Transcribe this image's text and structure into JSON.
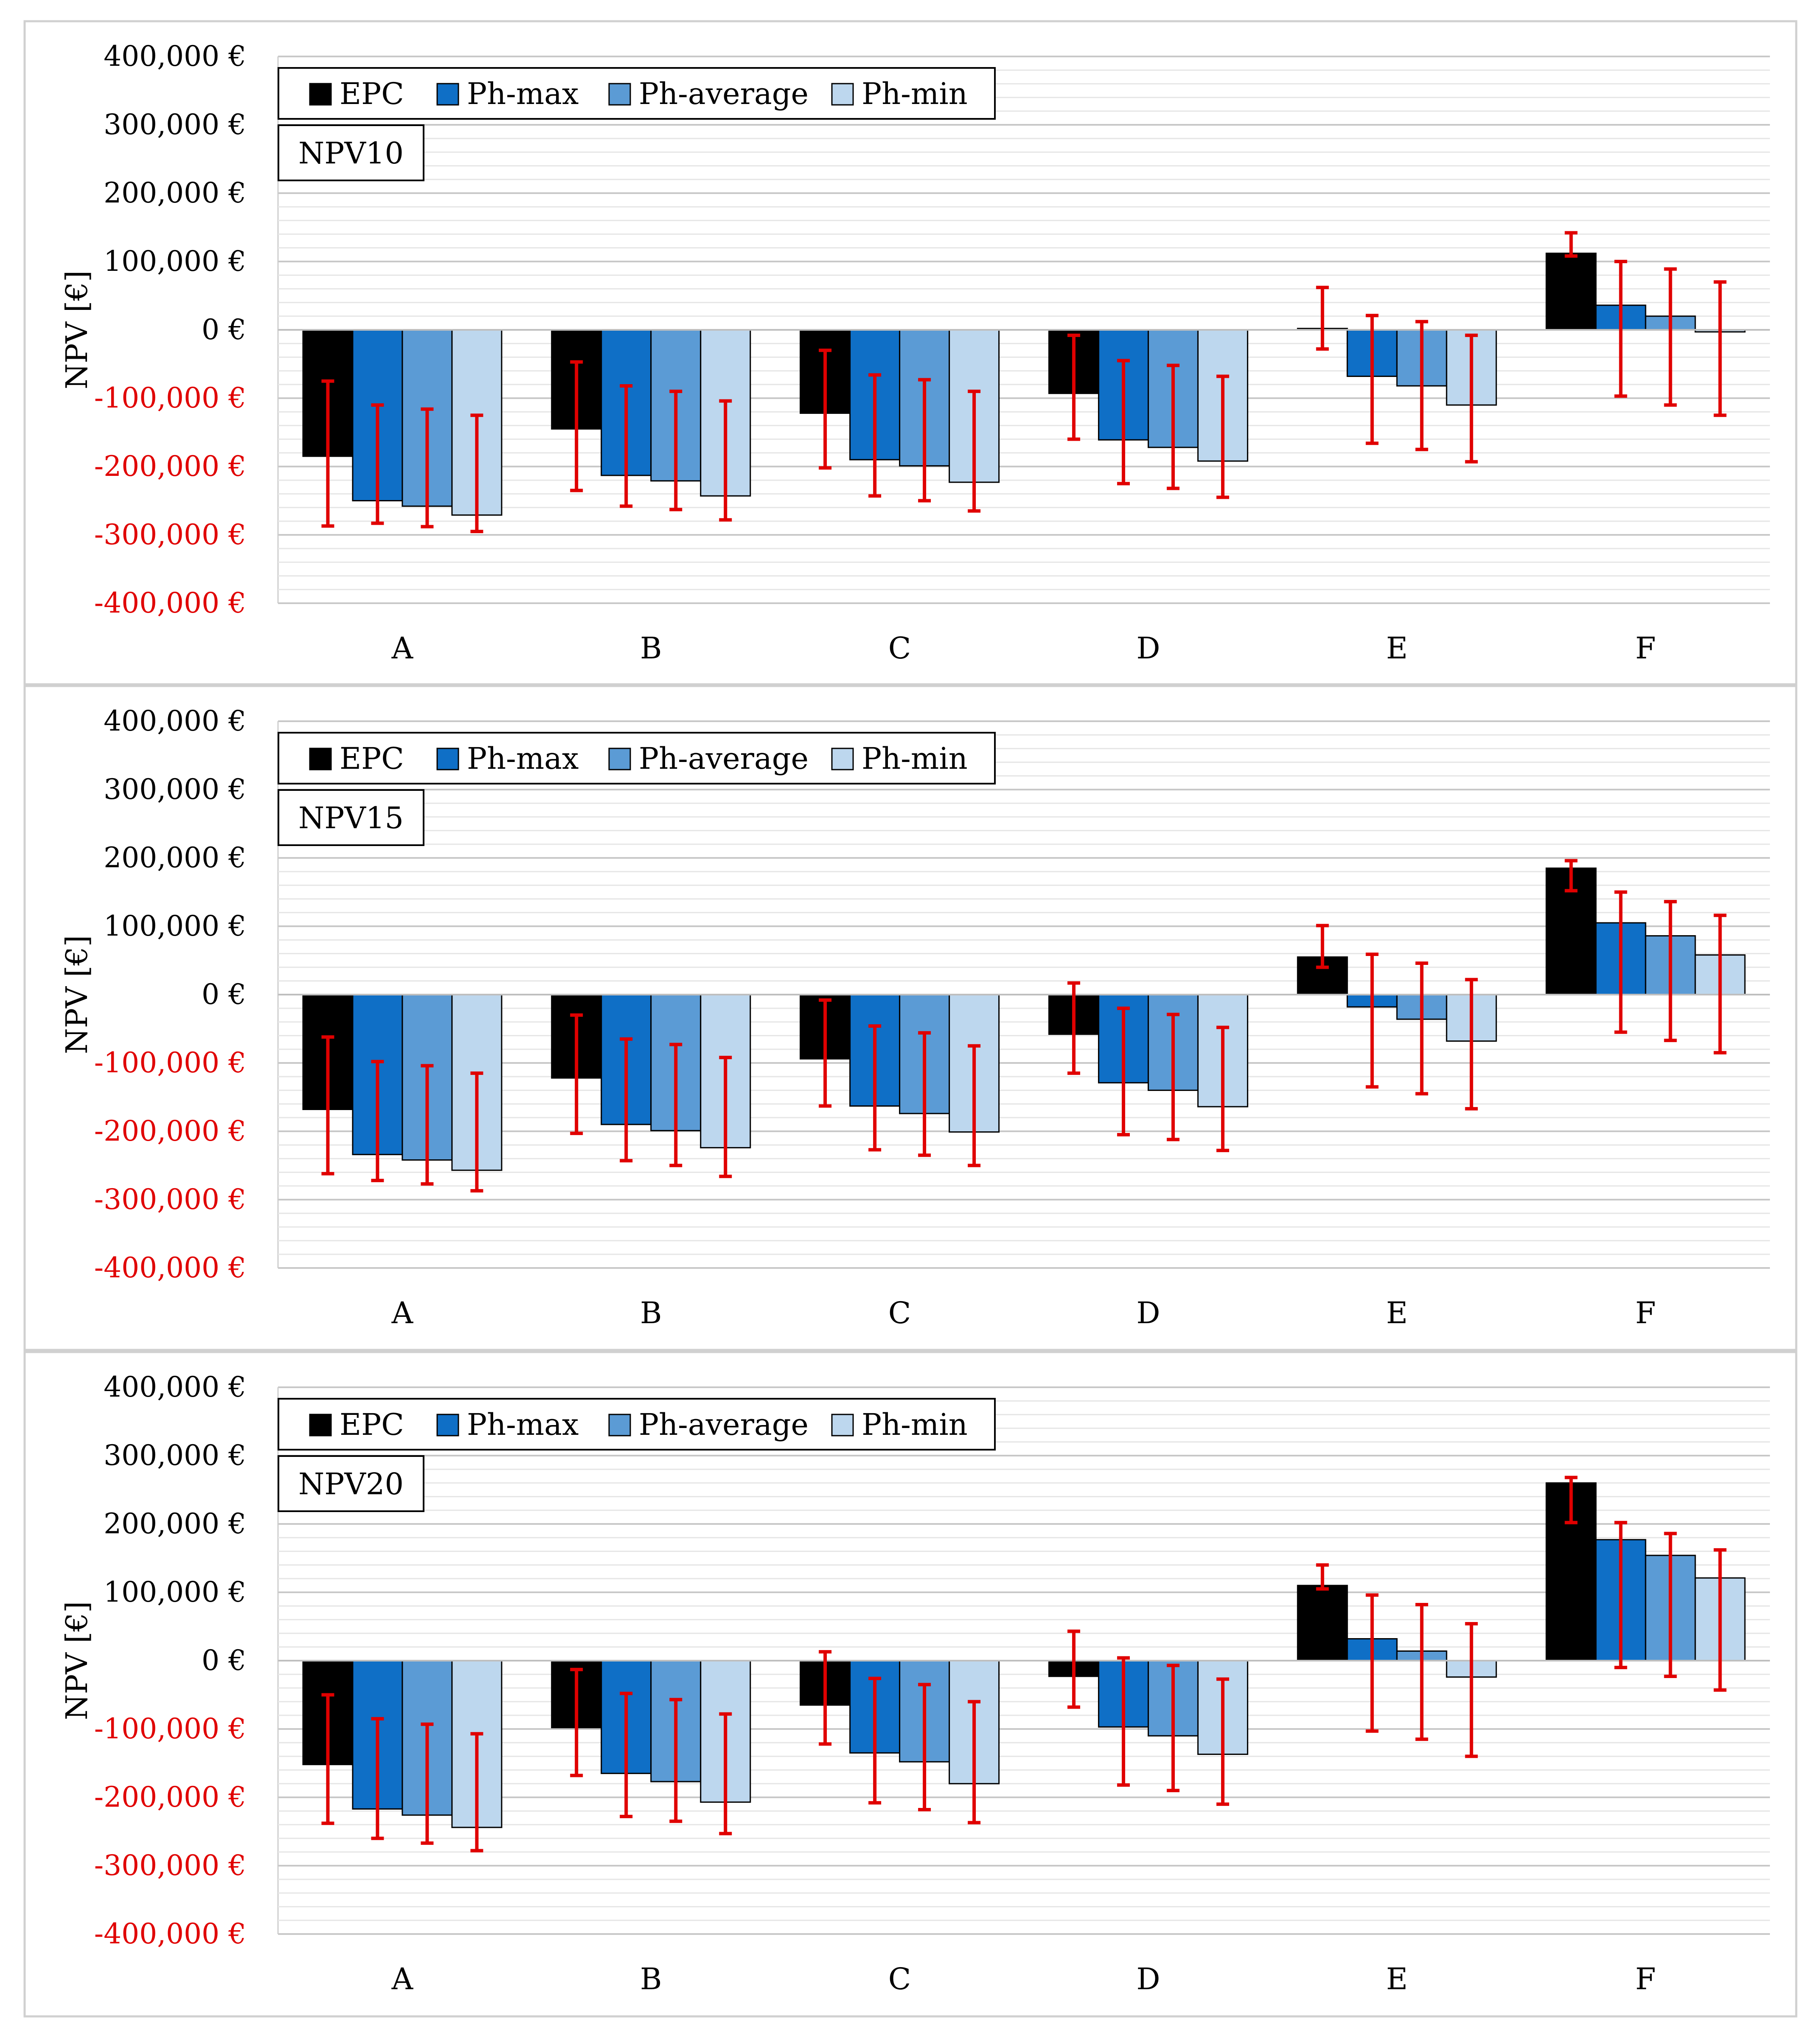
{
  "colors": {
    "EPC": "#000000",
    "Ph-max": "#0f6fc6",
    "Ph-average": "#5b9bd5",
    "Ph-min": "#bdd7ee",
    "error_bar": "#e00000",
    "negative_tick": "#e00000",
    "positive_tick": "#000000",
    "grid": "#d9d9d9",
    "frame": "#d0d0d0"
  },
  "chart_data": [
    {
      "type": "bar",
      "title": "NPV10",
      "ylabel": "NPV [€]",
      "xlabel": "",
      "ylim": [
        -400000,
        400000
      ],
      "yticks": [
        400000,
        300000,
        200000,
        100000,
        0,
        -100000,
        -200000,
        -300000,
        -400000
      ],
      "ytick_labels": [
        "400,000 €",
        "300,000 €",
        "200,000 €",
        "100,000 €",
        "0 €",
        "-100,000 €",
        "-200,000 €",
        "-300,000 €",
        "-400,000 €"
      ],
      "categories": [
        "A",
        "B",
        "C",
        "D",
        "E",
        "F"
      ],
      "legend": [
        "EPC",
        "Ph-max",
        "Ph-average",
        "Ph-min"
      ],
      "legend_position": "top-left",
      "series": [
        {
          "name": "EPC",
          "values": [
            -185000,
            -145000,
            -122000,
            -93000,
            2000,
            112000
          ],
          "err_low": [
            -287000,
            -235000,
            -202000,
            -160000,
            -28000,
            108000
          ],
          "err_high": [
            -75000,
            -47000,
            -30000,
            -8000,
            62000,
            142000
          ]
        },
        {
          "name": "Ph-max",
          "values": [
            -250000,
            -213000,
            -190000,
            -161000,
            -68000,
            36000
          ],
          "err_low": [
            -283000,
            -258000,
            -243000,
            -225000,
            -166000,
            -97000
          ],
          "err_high": [
            -110000,
            -82000,
            -66000,
            -45000,
            21000,
            100000
          ]
        },
        {
          "name": "Ph-average",
          "values": [
            -258000,
            -221000,
            -199000,
            -172000,
            -82000,
            20000
          ],
          "err_low": [
            -288000,
            -263000,
            -250000,
            -232000,
            -175000,
            -110000
          ],
          "err_high": [
            -116000,
            -90000,
            -73000,
            -52000,
            12000,
            89000
          ]
        },
        {
          "name": "Ph-min",
          "values": [
            -271000,
            -243000,
            -223000,
            -192000,
            -110000,
            -3000
          ],
          "err_low": [
            -295000,
            -278000,
            -265000,
            -245000,
            -193000,
            -125000
          ],
          "err_high": [
            -125000,
            -104000,
            -90000,
            -68000,
            -8000,
            70000
          ]
        }
      ]
    },
    {
      "type": "bar",
      "title": "NPV15",
      "ylabel": "NPV [€]",
      "xlabel": "",
      "ylim": [
        -400000,
        400000
      ],
      "yticks": [
        400000,
        300000,
        200000,
        100000,
        0,
        -100000,
        -200000,
        -300000,
        -400000
      ],
      "ytick_labels": [
        "400,000 €",
        "300,000 €",
        "200,000 €",
        "100,000 €",
        "0 €",
        "-100,000 €",
        "-200,000 €",
        "-300,000 €",
        "-400,000 €"
      ],
      "categories": [
        "A",
        "B",
        "C",
        "D",
        "E",
        "F"
      ],
      "legend": [
        "EPC",
        "Ph-max",
        "Ph-average",
        "Ph-min"
      ],
      "legend_position": "top-left",
      "series": [
        {
          "name": "EPC",
          "values": [
            -168000,
            -122000,
            -94000,
            -58000,
            55000,
            185000
          ],
          "err_low": [
            -262000,
            -203000,
            -163000,
            -115000,
            40000,
            152000
          ],
          "err_high": [
            -62000,
            -30000,
            -8000,
            17000,
            101000,
            196000
          ]
        },
        {
          "name": "Ph-max",
          "values": [
            -234000,
            -190000,
            -163000,
            -129000,
            -18000,
            105000
          ],
          "err_low": [
            -272000,
            -243000,
            -227000,
            -205000,
            -135000,
            -55000
          ],
          "err_high": [
            -98000,
            -65000,
            -46000,
            -20000,
            59000,
            150000
          ]
        },
        {
          "name": "Ph-average",
          "values": [
            -242000,
            -199000,
            -174000,
            -140000,
            -36000,
            86000
          ],
          "err_low": [
            -277000,
            -250000,
            -235000,
            -212000,
            -145000,
            -67000
          ],
          "err_high": [
            -104000,
            -73000,
            -56000,
            -29000,
            46000,
            136000
          ]
        },
        {
          "name": "Ph-min",
          "values": [
            -257000,
            -224000,
            -201000,
            -164000,
            -68000,
            58000
          ],
          "err_low": [
            -287000,
            -266000,
            -250000,
            -228000,
            -167000,
            -85000
          ],
          "err_high": [
            -115000,
            -92000,
            -75000,
            -48000,
            22000,
            116000
          ]
        }
      ]
    },
    {
      "type": "bar",
      "title": "NPV20",
      "ylabel": "NPV [€]",
      "xlabel": "",
      "ylim": [
        -400000,
        400000
      ],
      "yticks": [
        400000,
        300000,
        200000,
        100000,
        0,
        -100000,
        -200000,
        -300000,
        -400000
      ],
      "ytick_labels": [
        "400,000 €",
        "300,000 €",
        "200,000 €",
        "100,000 €",
        "0 €",
        "-100,000 €",
        "-200,000 €",
        "-300,000 €",
        "-400,000 €"
      ],
      "categories": [
        "A",
        "B",
        "C",
        "D",
        "E",
        "F"
      ],
      "legend": [
        "EPC",
        "Ph-max",
        "Ph-average",
        "Ph-min"
      ],
      "legend_position": "top-left",
      "series": [
        {
          "name": "EPC",
          "values": [
            -152000,
            -98000,
            -65000,
            -23000,
            110000,
            260000
          ],
          "err_low": [
            -238000,
            -168000,
            -122000,
            -68000,
            105000,
            202000
          ],
          "err_high": [
            -50000,
            -13000,
            13000,
            43000,
            140000,
            268000
          ]
        },
        {
          "name": "Ph-max",
          "values": [
            -217000,
            -165000,
            -135000,
            -97000,
            32000,
            177000
          ],
          "err_low": [
            -260000,
            -228000,
            -208000,
            -182000,
            -103000,
            -10000
          ],
          "err_high": [
            -85000,
            -48000,
            -26000,
            4000,
            96000,
            202000
          ]
        },
        {
          "name": "Ph-average",
          "values": [
            -226000,
            -177000,
            -148000,
            -110000,
            14000,
            154000
          ],
          "err_low": [
            -267000,
            -235000,
            -218000,
            -190000,
            -115000,
            -23000
          ],
          "err_high": [
            -93000,
            -57000,
            -35000,
            -7000,
            82000,
            186000
          ]
        },
        {
          "name": "Ph-min",
          "values": [
            -244000,
            -207000,
            -180000,
            -137000,
            -24000,
            121000
          ],
          "err_low": [
            -278000,
            -253000,
            -237000,
            -210000,
            -140000,
            -43000
          ],
          "err_high": [
            -107000,
            -78000,
            -60000,
            -27000,
            54000,
            162000
          ]
        }
      ]
    }
  ]
}
